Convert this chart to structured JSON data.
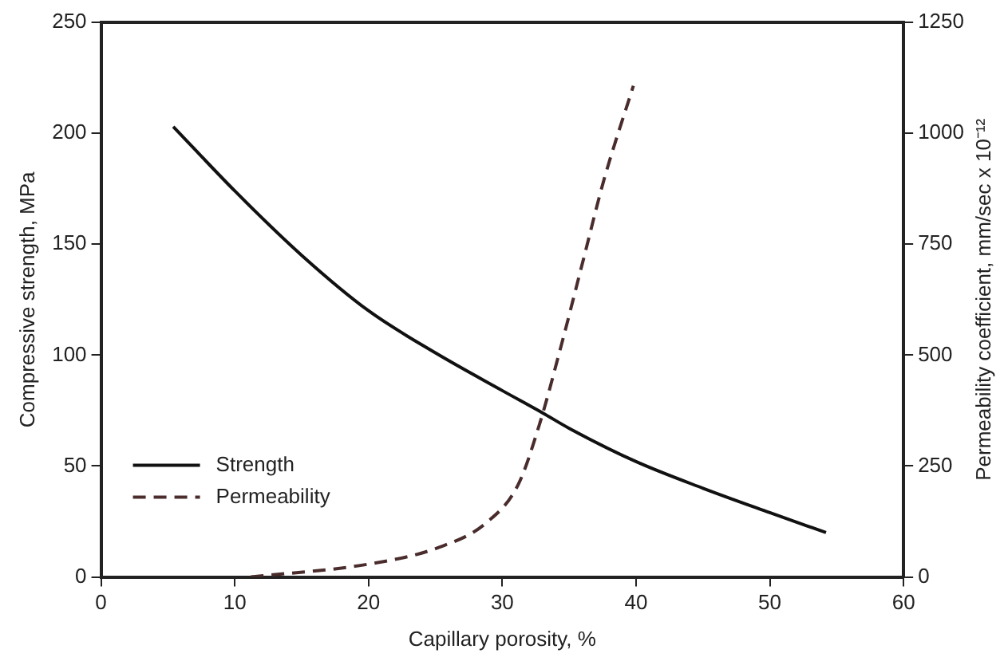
{
  "chart_data": {
    "type": "line",
    "xlabel": "Capillary porosity, %",
    "ylabel": "Compressive strength, MPa",
    "y2label": "Permeability coefficient, mm/sec x 10⁻¹²",
    "xlim": [
      0,
      60
    ],
    "xticks": [
      0,
      10,
      20,
      30,
      40,
      50,
      60
    ],
    "ylim": [
      0,
      250
    ],
    "yticks": [
      0,
      50,
      100,
      150,
      200,
      250
    ],
    "y2lim": [
      0,
      1250
    ],
    "y2ticks": [
      0,
      250,
      500,
      750,
      1000,
      1250
    ],
    "grid": false,
    "legend": "bottom left",
    "marker": "none",
    "series": [
      {
        "name": "Strength",
        "color": "#111111",
        "line_style": "solid",
        "x": [
          5.4,
          10,
          15,
          20,
          25,
          30,
          33,
          35,
          40,
          45,
          50,
          54.2
        ],
        "values": [
          203,
          174,
          145,
          120,
          101,
          84,
          74,
          67,
          52,
          40,
          29,
          20
        ]
      },
      {
        "name": "Permeability",
        "color": "#4a2c2c",
        "line_style": "dashed",
        "axis": "y2",
        "x": [
          11.2,
          20,
          25.2,
          28.8,
          31.2,
          32.8,
          34.4,
          36,
          37.6,
          39.8
        ],
        "values": [
          0,
          29,
          66,
          122,
          209,
          346,
          521,
          708,
          895,
          1107
        ]
      }
    ]
  }
}
